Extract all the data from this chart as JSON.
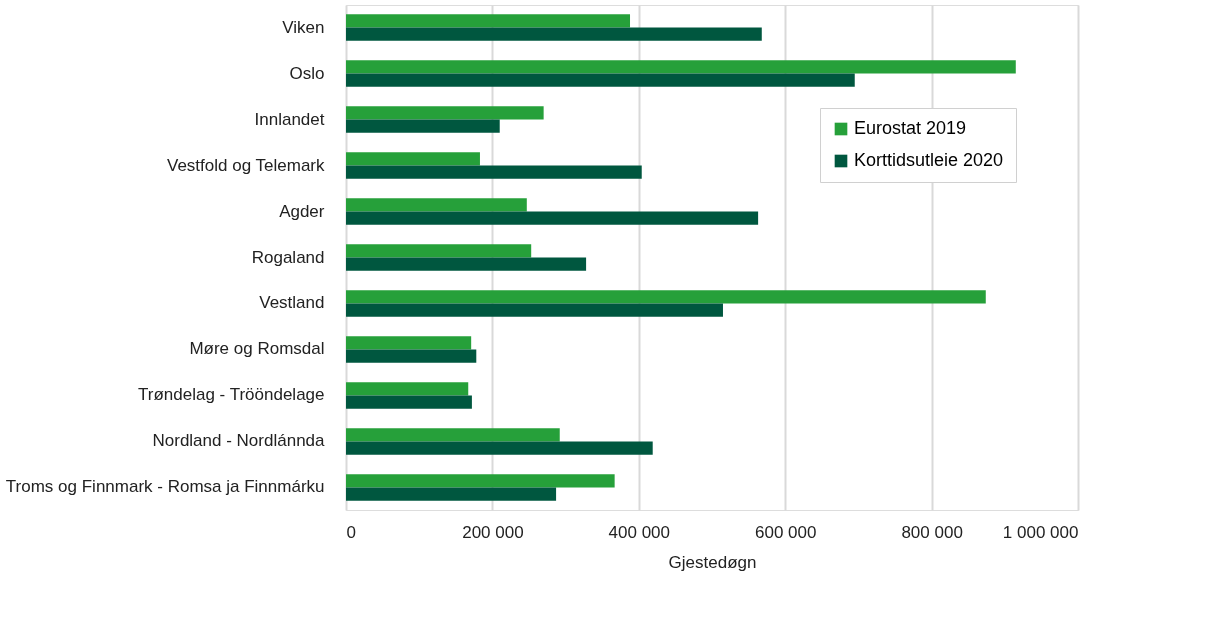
{
  "chart_data": {
    "type": "bar",
    "orientation": "horizontal",
    "xlabel": "Gjestedøgn",
    "categories": [
      "Viken",
      "Oslo",
      "Innlandet",
      "Vestfold og Telemark",
      "Agder",
      "Rogaland",
      "Vestland",
      "Møre og Romsdal",
      "Trøndelag - Trööndelage",
      "Nordland - Nordlánnda",
      "Troms og Finnmark - Romsa ja Finnmárku"
    ],
    "series": [
      {
        "name": "Eurostat 2019",
        "color": "#26a03a",
        "values": [
          388000,
          915000,
          270000,
          183000,
          247000,
          253000,
          874000,
          171000,
          167000,
          292000,
          367000
        ]
      },
      {
        "name": "Korttidsutleie 2020",
        "color": "#00573f",
        "values": [
          568000,
          695000,
          210000,
          404000,
          563000,
          328000,
          515000,
          178000,
          172000,
          419000,
          287000
        ]
      }
    ],
    "xlim": [
      0,
      1000000
    ],
    "xticks": [
      0,
      {
        "value": 200000,
        "label": "200 000"
      },
      {
        "value": 400000,
        "label": "400 000"
      },
      {
        "value": 600000,
        "label": "600 000"
      },
      {
        "value": 800000,
        "label": "800 000"
      },
      {
        "value": 1000000,
        "label": "1 000 000"
      }
    ],
    "grid": "x",
    "legend": "right"
  }
}
